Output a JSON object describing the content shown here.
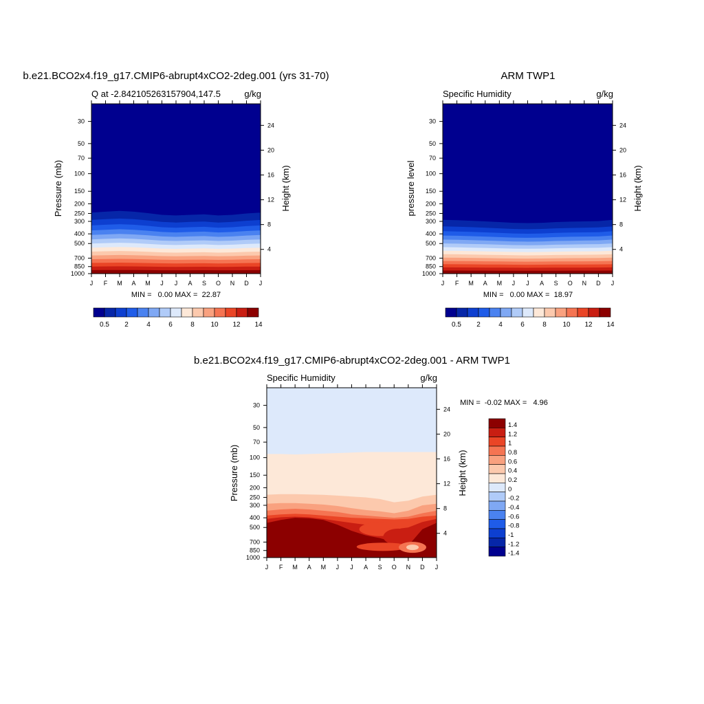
{
  "months": [
    "J",
    "F",
    "M",
    "A",
    "M",
    "J",
    "J",
    "A",
    "S",
    "O",
    "N",
    "D",
    "J"
  ],
  "pressure_ticks": [
    30,
    50,
    70,
    100,
    150,
    200,
    250,
    300,
    400,
    500,
    700,
    850,
    1000
  ],
  "height_ticks": [
    4,
    8,
    12,
    16,
    20,
    24
  ],
  "chart_data": [
    {
      "type": "heatmap",
      "id": "model",
      "title": "b.e21.BCO2x4.f19_g17.CMIP6-abrupt4xCO2-2deg.001 (yrs 31-70)",
      "left_label": "Q at -2.842105263157904,147.5",
      "units": "g/kg",
      "ylabel": "Pressure (mb)",
      "ylabel_right": "Height (km)",
      "stats_text": "MIN =   0.00 MAX =  22.87",
      "ylim_mb": [
        1000,
        20
      ],
      "moist_top_mb": [
        245,
        240,
        236,
        240,
        248,
        258,
        262,
        258,
        255,
        262,
        258,
        250,
        245
      ],
      "colorbar": {
        "levels": [
          0.5,
          1,
          2,
          3,
          4,
          5,
          6,
          7,
          8,
          9,
          10,
          11,
          12,
          13,
          14
        ],
        "tick_labels": [
          "0.5",
          "2",
          "4",
          "6",
          "8",
          "10",
          "12",
          "14"
        ]
      }
    },
    {
      "type": "heatmap",
      "id": "obs",
      "title": "ARM TWP1",
      "left_label": "Specific Humidity",
      "units": "g/kg",
      "ylabel": "pressure level",
      "ylabel_right": "Height (km)",
      "stats_text": "MIN =   0.00 MAX =  18.97",
      "ylim_mb": [
        1000,
        20
      ],
      "moist_top_mb": [
        290,
        292,
        296,
        300,
        305,
        310,
        312,
        310,
        305,
        302,
        300,
        298,
        290
      ],
      "colorbar": {
        "levels": [
          0.5,
          1,
          2,
          3,
          4,
          5,
          6,
          7,
          8,
          9,
          10,
          11,
          12,
          13,
          14
        ],
        "tick_labels": [
          "0.5",
          "2",
          "4",
          "6",
          "8",
          "10",
          "12",
          "14"
        ]
      }
    },
    {
      "type": "heatmap",
      "id": "diff",
      "title": "b.e21.BCO2x4.f19_g17.CMIP6-abrupt4xCO2-2deg.001 - ARM TWP1",
      "left_label": "Specific Humidity",
      "units": "g/kg",
      "ylabel": "Pressure (mb)",
      "ylabel_right": "Height (km)",
      "stats_text": "MIN =  -0.02 MAX =   4.96",
      "ylim_mb": [
        1000,
        20
      ],
      "colorbar": {
        "levels": [
          1.4,
          1.2,
          1,
          0.8,
          0.6,
          0.4,
          0.2,
          0,
          -0.2,
          -0.4,
          -0.6,
          -0.8,
          -1,
          -1.2,
          -1.4
        ],
        "tick_labels": [
          "1.4",
          "1.2",
          "1",
          "0.8",
          "0.6",
          "0.4",
          "0.2",
          "0",
          "-0.2",
          "-0.4",
          "-0.6",
          "-0.8",
          "-1",
          "-1.2",
          "-1.4"
        ]
      }
    }
  ],
  "colors": {
    "scale": [
      "#00008f",
      "#0626a8",
      "#0d3fd0",
      "#1f5ce8",
      "#4a82f0",
      "#7fa8f4",
      "#b0cbf8",
      "#dde9fb",
      "#fde8d8",
      "#fcc9ad",
      "#f9a17f",
      "#f57452",
      "#ea4526",
      "#c91e12",
      "#8c0000"
    ]
  }
}
